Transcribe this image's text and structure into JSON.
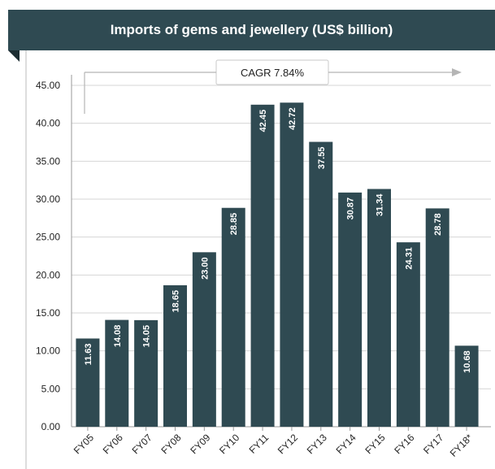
{
  "chart_data": {
    "type": "bar",
    "title": "Imports of gems and jewellery (US$ billion)",
    "categories": [
      "FY05",
      "FY06",
      "FY07",
      "FY08",
      "FY09",
      "FY10",
      "FY11",
      "FY12",
      "FY13",
      "FY14",
      "FY15",
      "FY16",
      "FY17",
      "FY18*"
    ],
    "values": [
      11.63,
      14.08,
      14.05,
      18.65,
      23.0,
      28.85,
      42.45,
      42.72,
      37.55,
      30.87,
      31.34,
      24.31,
      28.78,
      10.68
    ],
    "value_labels": [
      "11.63",
      "14.08",
      "14.05",
      "18.65",
      "23.00",
      "28.85",
      "42.45",
      "42.72",
      "37.55",
      "30.87",
      "31.34",
      "24.31",
      "28.78",
      "10.68"
    ],
    "y_ticks": [
      "0.00",
      "5.00",
      "10.00",
      "15.00",
      "20.00",
      "25.00",
      "30.00",
      "35.00",
      "40.00",
      "45.00"
    ],
    "ylim": [
      0,
      45
    ],
    "grid": true,
    "annotation": "CAGR 7.84%",
    "bar_color": "#2f4a52",
    "banner_color": "#2f4a52"
  }
}
